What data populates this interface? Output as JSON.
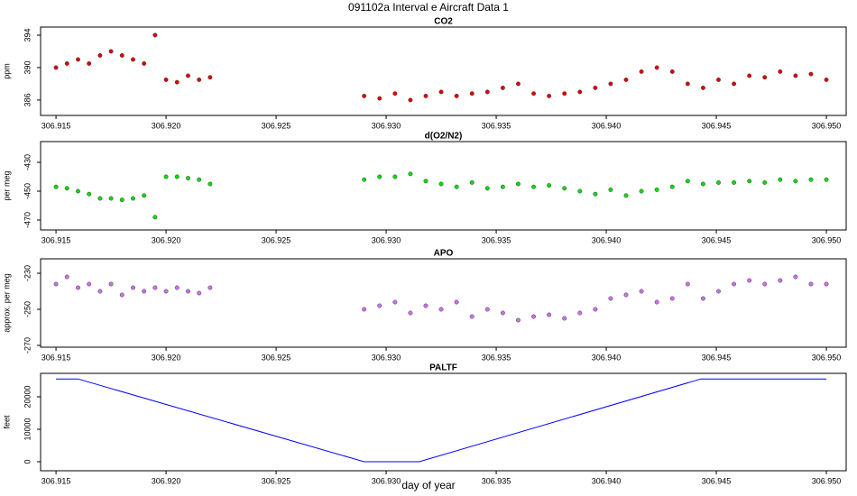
{
  "title": "091102a   Interval e Aircraft Data 1",
  "xlabel": "day of year",
  "chart_data": [
    {
      "type": "scatter",
      "title": "CO2",
      "ylabel": "ppm",
      "xlim": [
        306.9143,
        306.9509
      ],
      "ylim": [
        384.1,
        395
      ],
      "xticks": [
        306.915,
        {
          "value": 306.92,
          "label": "306.920"
        },
        306.925,
        {
          "value": 306.93,
          "label": "306.930"
        },
        306.935,
        {
          "value": 306.94,
          "label": "306.940"
        },
        306.945,
        {
          "value": 306.95,
          "label": "306.950"
        }
      ],
      "yticks": [
        386,
        390,
        394
      ],
      "x": [
        306.915,
        306.9155,
        306.916,
        306.9165,
        306.917,
        306.9175,
        306.918,
        306.9185,
        306.919,
        306.9195,
        306.92,
        306.9205,
        306.921,
        306.9215,
        306.922,
        306.929,
        306.9297,
        306.9304,
        306.9311,
        306.9318,
        306.9325,
        306.9332,
        306.9339,
        306.9346,
        306.9353,
        306.936,
        306.9367,
        306.9374,
        306.9381,
        306.9388,
        306.9395,
        306.9402,
        306.9409,
        306.9416,
        306.9423,
        306.943,
        306.9437,
        306.9444,
        306.9451,
        306.9458,
        306.9465,
        306.9472,
        306.9479,
        306.9486,
        306.9493,
        306.95
      ],
      "series": [
        {
          "name": "CO2",
          "color": "#e00000",
          "values": [
            390,
            390.5,
            391,
            390.5,
            391.5,
            392,
            391.5,
            391,
            390.5,
            394,
            388.5,
            388.2,
            389,
            388.5,
            388.8,
            386.5,
            386.2,
            386.8,
            386,
            386.5,
            387,
            386.5,
            386.8,
            387,
            387.5,
            388,
            386.8,
            386.5,
            386.8,
            387,
            387.5,
            388,
            388.5,
            389.5,
            390,
            389.5,
            388,
            387.5,
            388.5,
            388,
            389,
            388.8,
            389.5,
            389,
            389.2,
            388.5
          ]
        }
      ]
    },
    {
      "type": "scatter",
      "title": "d(O2/N2)",
      "ylabel": "per meg",
      "xlim": [
        306.9143,
        306.9509
      ],
      "ylim": [
        -476.9,
        -415.6
      ],
      "xticks": [
        306.915,
        {
          "value": 306.92,
          "label": "306.920"
        },
        306.925,
        {
          "value": 306.93,
          "label": "306.930"
        },
        306.935,
        {
          "value": 306.94,
          "label": "306.940"
        },
        306.945,
        {
          "value": 306.95,
          "label": "306.950"
        }
      ],
      "yticks": [
        -430,
        -450,
        -470
      ],
      "x": [
        306.915,
        306.9155,
        306.916,
        306.9165,
        306.917,
        306.9175,
        306.918,
        306.9185,
        306.919,
        306.9195,
        306.92,
        306.9205,
        306.921,
        306.9215,
        306.922,
        306.929,
        306.9297,
        306.9304,
        306.9311,
        306.9318,
        306.9325,
        306.9332,
        306.9339,
        306.9346,
        306.9353,
        306.936,
        306.9367,
        306.9374,
        306.9381,
        306.9388,
        306.9395,
        306.9402,
        306.9409,
        306.9416,
        306.9423,
        306.943,
        306.9437,
        306.9444,
        306.9451,
        306.9458,
        306.9465,
        306.9472,
        306.9479,
        306.9486,
        306.9493,
        306.95
      ],
      "series": [
        {
          "name": "d(O2/N2)",
          "color": "#00e000",
          "values": [
            -447,
            -448,
            -450,
            -452,
            -455,
            -455,
            -456,
            -455,
            -453,
            -468,
            -440,
            -440,
            -441,
            -442,
            -445,
            -442,
            -440,
            -440,
            -438,
            -443,
            -445,
            -447,
            -444,
            -448,
            -447,
            -445,
            -447,
            -446,
            -448,
            -450,
            -452,
            -449,
            -453,
            -450,
            -449,
            -447,
            -443,
            -445,
            -444,
            -444,
            -443,
            -444,
            -442,
            -443,
            -442,
            -442
          ]
        }
      ]
    },
    {
      "type": "scatter",
      "title": "APO",
      "ylabel": "approx. per meg",
      "xlim": [
        306.9143,
        306.9509
      ],
      "ylim": [
        -271,
        -222
      ],
      "xticks": [
        306.915,
        {
          "value": 306.92,
          "label": "306.920"
        },
        306.925,
        {
          "value": 306.93,
          "label": "306.930"
        },
        306.935,
        {
          "value": 306.94,
          "label": "306.940"
        },
        306.945,
        {
          "value": 306.95,
          "label": "306.950"
        }
      ],
      "yticks": [
        -230,
        -250,
        -270
      ],
      "x": [
        306.915,
        306.9155,
        306.916,
        306.9165,
        306.917,
        306.9175,
        306.918,
        306.9185,
        306.919,
        306.9195,
        306.92,
        306.9205,
        306.921,
        306.9215,
        306.922,
        306.929,
        306.9297,
        306.9304,
        306.9311,
        306.9318,
        306.9325,
        306.9332,
        306.9339,
        306.9346,
        306.9353,
        306.936,
        306.9367,
        306.9374,
        306.9381,
        306.9388,
        306.9395,
        306.9402,
        306.9409,
        306.9416,
        306.9423,
        306.943,
        306.9437,
        306.9444,
        306.9451,
        306.9458,
        306.9465,
        306.9472,
        306.9479,
        306.9486,
        306.9493,
        306.95
      ],
      "series": [
        {
          "name": "APO",
          "color": "#d070f0",
          "values": [
            -236,
            -232,
            -238,
            -236,
            -240,
            -236,
            -242,
            -238,
            -240,
            -238,
            -240,
            -238,
            -240,
            -241,
            -238,
            -250,
            -248,
            -246,
            -252,
            -248,
            -250,
            -246,
            -254,
            -250,
            -252,
            -256,
            -254,
            -253,
            -255,
            -252,
            -250,
            -244,
            -242,
            -240,
            -246,
            -244,
            -236,
            -244,
            -240,
            -236,
            -234,
            -236,
            -234,
            -232,
            -236,
            -236
          ]
        }
      ]
    },
    {
      "type": "line",
      "title": "PALTF",
      "ylabel": "feet",
      "xlim": [
        306.9143,
        306.9509
      ],
      "ylim": [
        -2778,
        27222
      ],
      "xticks": [
        306.915,
        {
          "value": 306.92,
          "label": "306.920"
        },
        306.925,
        {
          "value": 306.93,
          "label": "306.930"
        },
        306.935,
        {
          "value": 306.94,
          "label": "306.940"
        },
        306.945,
        {
          "value": 306.95,
          "label": "306.950"
        }
      ],
      "yticks": [
        0,
        10000,
        20000
      ],
      "x": [
        306.915,
        306.916,
        306.929,
        306.9315,
        306.9443,
        306.95
      ],
      "series": [
        {
          "name": "PALTF",
          "color": "#0000ff",
          "values": [
            25500,
            25500,
            0,
            0,
            25500,
            25500
          ]
        }
      ]
    }
  ]
}
